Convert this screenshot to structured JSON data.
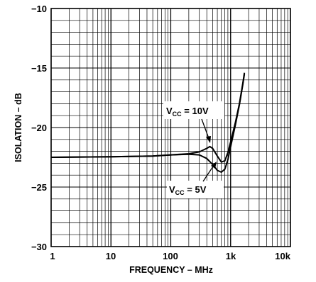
{
  "chart_data": {
    "type": "line",
    "xlabel": "FREQUENCY – MHz",
    "ylabel": "ISOLATION – dB",
    "xscale": "log",
    "xlim": [
      1,
      10000
    ],
    "ylim": [
      -30,
      -10
    ],
    "x_tick_labels": [
      "1",
      "10",
      "100",
      "1k",
      "10k"
    ],
    "x_tick_values": [
      1,
      10,
      100,
      1000,
      10000
    ],
    "y_tick_labels": [
      "−10",
      "−15",
      "−20",
      "−25",
      "−30"
    ],
    "y_tick_values": [
      -10,
      -15,
      -20,
      -25,
      -30
    ],
    "grid": true,
    "series": [
      {
        "name": "VCC = 10V",
        "x": [
          1,
          10,
          50,
          100,
          200,
          300,
          400,
          450,
          500,
          600,
          700,
          800,
          900,
          1000,
          1200,
          1400,
          1600,
          1700
        ],
        "y": [
          -22.5,
          -22.45,
          -22.4,
          -22.3,
          -22.2,
          -22.05,
          -21.75,
          -21.6,
          -21.75,
          -22.4,
          -22.9,
          -22.8,
          -22.1,
          -21.2,
          -19.6,
          -18.0,
          -16.3,
          -15.4
        ]
      },
      {
        "name": "VCC = 5V",
        "x": [
          1,
          10,
          50,
          100,
          200,
          300,
          400,
          500,
          600,
          700,
          800,
          900,
          1000,
          1200,
          1400,
          1600,
          1700
        ],
        "y": [
          -22.5,
          -22.45,
          -22.4,
          -22.3,
          -22.25,
          -22.3,
          -22.6,
          -23.1,
          -23.6,
          -23.75,
          -23.5,
          -22.7,
          -21.6,
          -19.8,
          -18.1,
          -16.4,
          -15.5
        ]
      }
    ],
    "annotations": [
      {
        "main": "V",
        "sub": "CC",
        "rest": " = 10V"
      },
      {
        "main": "V",
        "sub": "CC",
        "rest": " = 5V"
      }
    ]
  }
}
